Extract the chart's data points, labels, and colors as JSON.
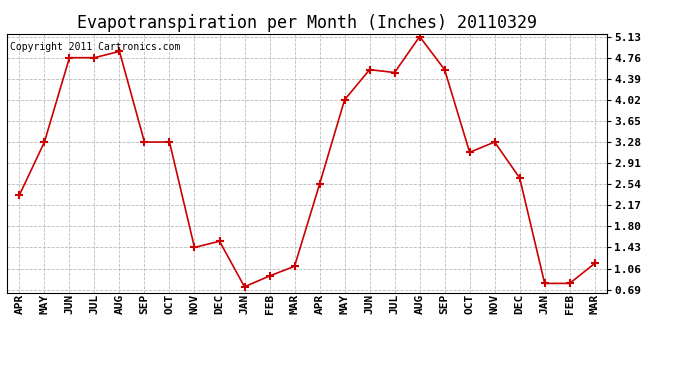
{
  "title": "Evapotranspiration per Month (Inches) 20110329",
  "copyright_text": "Copyright 2011 Cartronics.com",
  "months": [
    "APR",
    "MAY",
    "JUN",
    "JUL",
    "AUG",
    "SEP",
    "OCT",
    "NOV",
    "DEC",
    "JAN",
    "FEB",
    "MAR",
    "APR",
    "MAY",
    "JUN",
    "JUL",
    "AUG",
    "SEP",
    "OCT",
    "NOV",
    "DEC",
    "JAN",
    "FEB",
    "MAR"
  ],
  "values": [
    2.35,
    3.28,
    4.76,
    4.76,
    4.87,
    3.28,
    3.28,
    1.43,
    1.54,
    0.74,
    0.93,
    1.1,
    2.54,
    4.02,
    4.55,
    4.5,
    5.13,
    4.55,
    3.1,
    3.28,
    2.65,
    0.8,
    0.8,
    1.15
  ],
  "yticks": [
    0.69,
    1.06,
    1.43,
    1.8,
    2.17,
    2.54,
    2.91,
    3.28,
    3.65,
    4.02,
    4.39,
    4.76,
    5.13
  ],
  "line_color": "#cc0000",
  "marker": "+",
  "marker_size": 6,
  "marker_linewidth": 1.5,
  "background_color": "#ffffff",
  "plot_bg_color": "#ffffff",
  "grid_color": "#bbbbbb",
  "title_fontsize": 12,
  "copyright_fontsize": 7,
  "tick_fontsize": 8,
  "ymin": 0.69,
  "ymax": 5.13
}
